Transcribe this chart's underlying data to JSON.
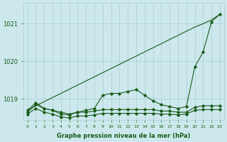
{
  "background_color": "#cce8ec",
  "grid_color": "#a8cdd4",
  "line_color": "#1a5c1a",
  "x_ticks": [
    0,
    1,
    2,
    3,
    4,
    5,
    6,
    7,
    8,
    9,
    10,
    11,
    12,
    13,
    14,
    15,
    16,
    17,
    18,
    19,
    20,
    21,
    22,
    23
  ],
  "ylim": [
    1018.45,
    1021.55
  ],
  "yticks": [
    1019,
    1020,
    1021
  ],
  "xlabel": "Graphe pression niveau de la mer (hPa)",
  "line1_smooth": [
    1018.7,
    1018.82,
    1018.93,
    1019.04,
    1019.15,
    1019.26,
    1019.37,
    1019.48,
    1019.59,
    1019.7,
    1019.81,
    1019.92,
    1020.03,
    1020.14,
    1020.25,
    1020.36,
    1020.47,
    1020.58,
    1020.69,
    1020.8,
    1020.91,
    1021.0,
    1021.1,
    1021.25
  ],
  "line2_wiggly": [
    1018.7,
    1018.9,
    1018.75,
    1018.7,
    1018.65,
    1018.6,
    1018.65,
    1018.7,
    1018.75,
    1019.1,
    1019.15,
    1019.15,
    1019.2,
    1019.25,
    1019.1,
    1018.95,
    1018.85,
    1018.8,
    1018.75,
    1018.8,
    1019.85,
    1020.25,
    1021.05,
    1021.25
  ],
  "line3_flat": [
    1018.65,
    1018.85,
    1018.75,
    1018.7,
    1018.6,
    1018.58,
    1018.65,
    1018.65,
    1018.68,
    1018.72,
    1018.72,
    1018.72,
    1018.72,
    1018.72,
    1018.72,
    1018.72,
    1018.68,
    1018.68,
    1018.65,
    1018.65,
    1018.78,
    1018.82,
    1018.82,
    1018.82
  ],
  "line4_flat": [
    1018.6,
    1018.75,
    1018.65,
    1018.6,
    1018.52,
    1018.5,
    1018.55,
    1018.55,
    1018.58,
    1018.62,
    1018.62,
    1018.62,
    1018.62,
    1018.62,
    1018.62,
    1018.62,
    1018.6,
    1018.6,
    1018.58,
    1018.6,
    1018.7,
    1018.72,
    1018.72,
    1018.72
  ]
}
